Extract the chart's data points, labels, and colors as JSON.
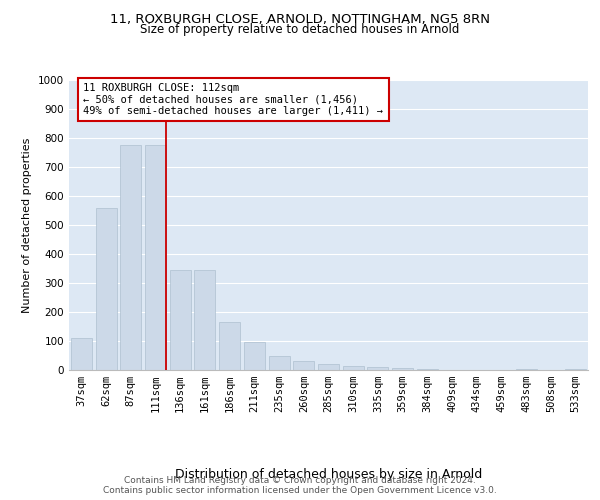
{
  "title_line1": "11, ROXBURGH CLOSE, ARNOLD, NOTTINGHAM, NG5 8RN",
  "title_line2": "Size of property relative to detached houses in Arnold",
  "xlabel": "Distribution of detached houses by size in Arnold",
  "ylabel": "Number of detached properties",
  "categories": [
    "37sqm",
    "62sqm",
    "87sqm",
    "111sqm",
    "136sqm",
    "161sqm",
    "186sqm",
    "211sqm",
    "235sqm",
    "260sqm",
    "285sqm",
    "310sqm",
    "335sqm",
    "359sqm",
    "384sqm",
    "409sqm",
    "434sqm",
    "459sqm",
    "483sqm",
    "508sqm",
    "533sqm"
  ],
  "values": [
    110,
    560,
    775,
    775,
    345,
    345,
    165,
    95,
    50,
    30,
    20,
    15,
    10,
    8,
    5,
    0,
    0,
    0,
    5,
    0,
    5
  ],
  "bar_color": "#ccd9e8",
  "bar_edge_color": "#aec0d0",
  "vline_color": "#cc0000",
  "annotation_line1": "11 ROXBURGH CLOSE: 112sqm",
  "annotation_line2": "← 50% of detached houses are smaller (1,456)",
  "annotation_line3": "49% of semi-detached houses are larger (1,411) →",
  "annotation_box_color": "#cc0000",
  "ylim": [
    0,
    1000
  ],
  "yticks": [
    0,
    100,
    200,
    300,
    400,
    500,
    600,
    700,
    800,
    900,
    1000
  ],
  "background_color": "#dde8f4",
  "footer_text": "Contains HM Land Registry data © Crown copyright and database right 2024.\nContains public sector information licensed under the Open Government Licence v3.0.",
  "title_fontsize": 9.5,
  "subtitle_fontsize": 8.5,
  "xlabel_fontsize": 9,
  "ylabel_fontsize": 8,
  "tick_fontsize": 7.5,
  "annotation_fontsize": 7.5,
  "footer_fontsize": 6.5
}
